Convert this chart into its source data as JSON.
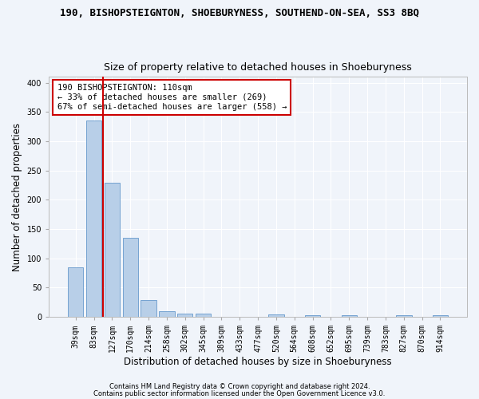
{
  "title1": "190, BISHOPSTEIGNTON, SHOEBURYNESS, SOUTHEND-ON-SEA, SS3 8BQ",
  "title2": "Size of property relative to detached houses in Shoeburyness",
  "xlabel": "Distribution of detached houses by size in Shoeburyness",
  "ylabel": "Number of detached properties",
  "categories": [
    "39sqm",
    "83sqm",
    "127sqm",
    "170sqm",
    "214sqm",
    "258sqm",
    "302sqm",
    "345sqm",
    "389sqm",
    "433sqm",
    "477sqm",
    "520sqm",
    "564sqm",
    "608sqm",
    "652sqm",
    "695sqm",
    "739sqm",
    "783sqm",
    "827sqm",
    "870sqm",
    "914sqm"
  ],
  "values": [
    85,
    335,
    229,
    135,
    29,
    10,
    5,
    5,
    0,
    0,
    0,
    4,
    0,
    3,
    0,
    3,
    0,
    0,
    3,
    0,
    3
  ],
  "bar_color": "#b8cfe8",
  "bar_edge_color": "#6699cc",
  "vline_x": 1.5,
  "vline_color": "#cc0000",
  "annotation_text": "190 BISHOPSTEIGNTON: 110sqm\n← 33% of detached houses are smaller (269)\n67% of semi-detached houses are larger (558) →",
  "annotation_box_color": "#ffffff",
  "annotation_box_edge": "#cc0000",
  "ylim": [
    0,
    410
  ],
  "yticks": [
    0,
    50,
    100,
    150,
    200,
    250,
    300,
    350,
    400
  ],
  "footer1": "Contains HM Land Registry data © Crown copyright and database right 2024.",
  "footer2": "Contains public sector information licensed under the Open Government Licence v3.0.",
  "bg_color": "#f0f4fa",
  "plot_bg_color": "#f0f4fa",
  "title1_fontsize": 9,
  "title2_fontsize": 9,
  "tick_fontsize": 7,
  "ylabel_fontsize": 8.5,
  "xlabel_fontsize": 8.5,
  "footer_fontsize": 6,
  "annot_fontsize": 7.5
}
